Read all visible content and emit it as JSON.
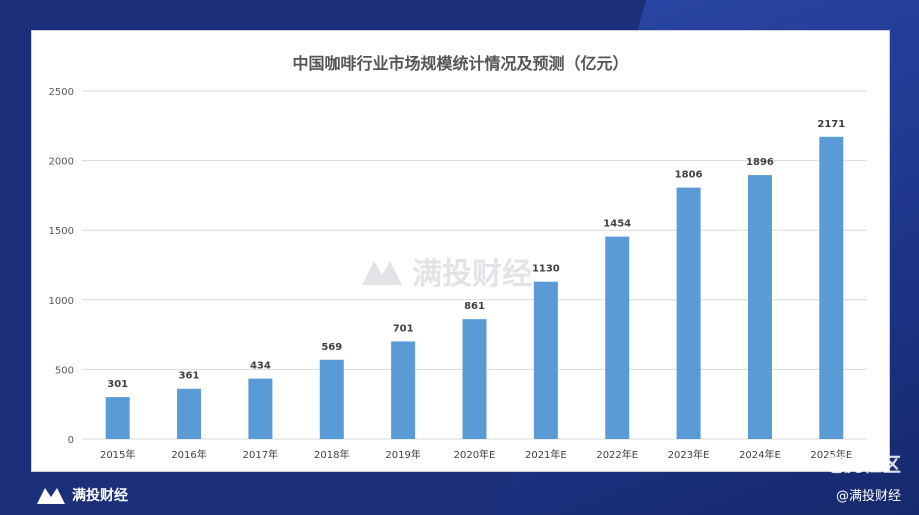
{
  "colors": {
    "background": "#1b2f7a",
    "bar": "#5b9bd5",
    "grid": "#d9d9d9",
    "axis_text": "#595959",
    "label_text": "#404040"
  },
  "watermark": {
    "center_text": "满投财经",
    "center_icon": "mountain-logo-icon",
    "right_text": "老虎社区"
  },
  "footer": {
    "brand": "满投财经",
    "brand_icon": "mountain-logo-icon",
    "handle": "@满投财经"
  },
  "chart_data": {
    "type": "bar",
    "title": "中国咖啡行业市场规模统计情况及预测（亿元）",
    "categories": [
      "2015年",
      "2016年",
      "2017年",
      "2018年",
      "2019年",
      "2020年E",
      "2021年E",
      "2022年E",
      "2023年E",
      "2024年E",
      "2025年E"
    ],
    "values": [
      301,
      361,
      434,
      569,
      701,
      861,
      1130,
      1454,
      1806,
      1896,
      2171
    ],
    "ylim": [
      0,
      2500
    ],
    "yticks": [
      0,
      500,
      1000,
      1500,
      2000,
      2500
    ],
    "grid": true,
    "xlabel": "",
    "ylabel": ""
  }
}
